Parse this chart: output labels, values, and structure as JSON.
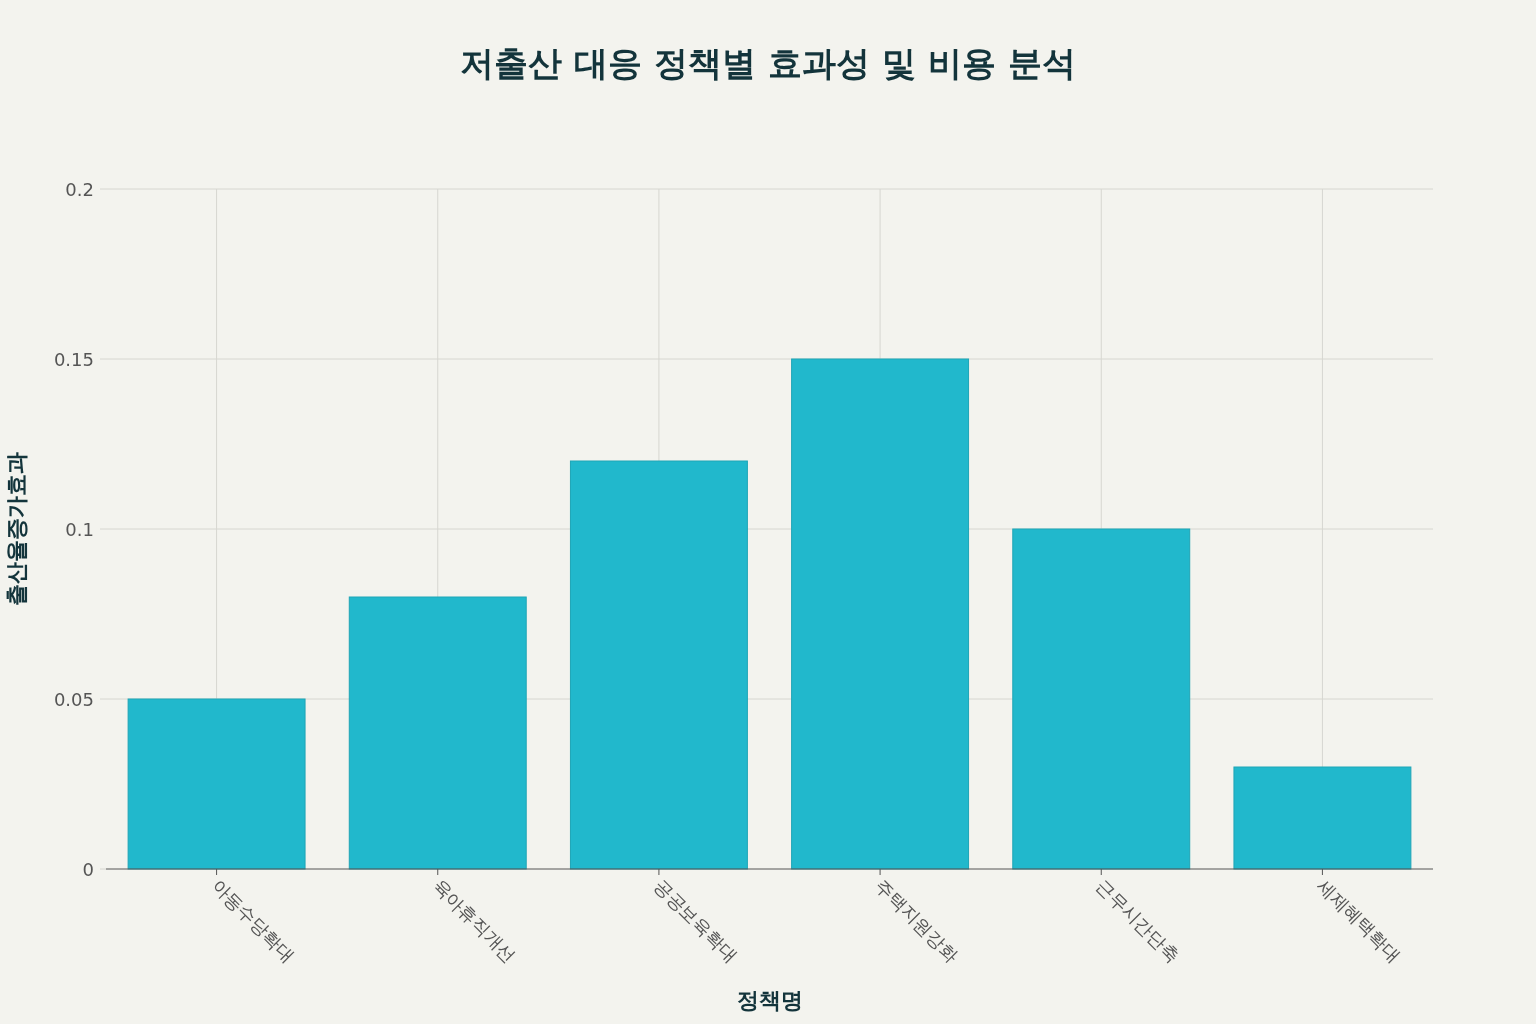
{
  "chart_data": {
    "type": "bar",
    "title": "저출산 대응 정책별 효과성 및 비용 분석",
    "xlabel": "정책명",
    "ylabel": "출산율증가효과",
    "categories": [
      "아동수당확대",
      "육아휴직개선",
      "공공보육확대",
      "주택지원강화",
      "근무시간단축",
      "세제혜택확대"
    ],
    "values": [
      0.05,
      0.08,
      0.12,
      0.15,
      0.1,
      0.03
    ],
    "color": "#21b8cc",
    "ylim": [
      0,
      0.2
    ],
    "yticks": [
      0,
      0.05,
      0.1,
      0.15,
      0.2
    ],
    "grid": true
  }
}
